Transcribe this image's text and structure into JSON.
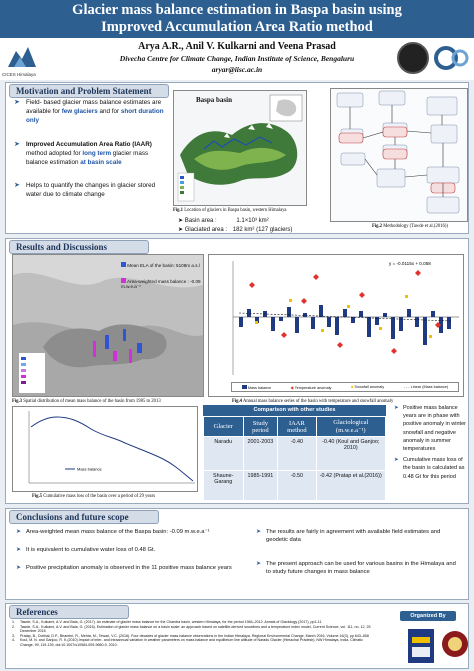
{
  "title": {
    "line1": "Glacier mass balance estimation in Baspa basin using",
    "line2": "Improved Accumulation Area Ratio method"
  },
  "authors": "Arya A.R., Anil V. Kulkarni and Veena Prasad",
  "affiliation": "Divecha Centre for Climate Change, Indian Institute of Science, Bengaluru",
  "email": "aryar@iisc.ac.in",
  "logo_left_caption": "CICES Himalaya",
  "motivation": {
    "heading": "Motivation and Problem Statement",
    "bullets": [
      {
        "pre": "Field- based glacier mass balance estimates are available for ",
        "hl1": "few glaciers",
        "mid": " and for ",
        "hl2": "short duration only",
        "post": ""
      },
      {
        "pre": "Improved Accumulation Area Ratio (IAAR)",
        "mid": " method adopted for ",
        "hl1": "long term",
        "post": " glacier mass balance estimation ",
        "hl2": "at basin scale"
      },
      {
        "text": "Helps to quantify the changes in glacier stored water due to climate change"
      }
    ]
  },
  "fig1": {
    "map_title": "Baspa basin",
    "caption_num": "Fig.1",
    "caption": " Location of glaciers in Baspa basin, western Himalaya",
    "basin_area_label": "Basin area :",
    "basin_area_value": "1.1×10³ km²",
    "glaciated_area_label": "Glaciated area :",
    "glaciated_area_value": "182 km² (127 glaciers)"
  },
  "fig2": {
    "caption_num": "Fig.2",
    "caption": " Methodology (Tawde et al.(2016))",
    "boxes": [
      "Equilibrium line altitude (ELA)",
      "Accumulation Area Ratio (AAR)",
      "Glacier mass balance",
      "Snow line altitude",
      "Hypsometry",
      "Temperature and precipitation data",
      "Mass balance",
      "Glacier area",
      "Snow cover"
    ]
  },
  "results": {
    "heading": "Results and Discussions",
    "fig3_legend1": "Mean ELA of the basin: 5108m a.s.l",
    "fig3_legend2": "Area-weighted mass balance : -0.09 m.w.e.a⁻¹",
    "fig3_caption_num": "Fig.3",
    "fig3_caption": " Spatial distribution of mean mass balance of the basin from 1985 to 2013",
    "fig4_caption_num": "Fig.4",
    "fig4_caption": " Annual mass balance series of the basin with temperature and snowfall anomaly",
    "fig4_equation": "y = -0.0115x + 0.058",
    "fig4_legend": [
      "Mass balance",
      "Temperature anomaly",
      "Snowfall anomaly",
      "Linear (Mass balance)"
    ],
    "fig5_caption_num": "Fig.5",
    "fig5_caption": " Cumulative mass loss of the basin over a period of 29 years",
    "fig5_legend": "Mass balance"
  },
  "table": {
    "title": "Comparison with other studies",
    "headers": [
      "Glacier",
      "Study period",
      "IAAR method",
      "Glaciological (m.w.e.a⁻¹)"
    ],
    "rows": [
      [
        "Naradu",
        "2001-2003",
        "-0.40",
        "-0.40 (Koul and Ganjoo; 2010)"
      ],
      [
        "Shaune-Garang",
        "1985-1991",
        "-0.50",
        "-0.42 (Pratap et al.(2016))"
      ]
    ]
  },
  "right_bullets": [
    "Positive mass balance years are in phase with positive anomaly in winter snowfall and negative anomaly in summer temperatures",
    "Cumulative mass loss of the basin is calculated as 0.48 Gt for this period"
  ],
  "conclusions": {
    "heading": "Conclusions and future scope",
    "left": [
      "Area-weighted mean mass balance of the Baspa basin: -0.09 m.w.e.a⁻¹",
      "It is equivalent to cumulative water loss of 0.48 Gt.",
      "Positive precipitation anomaly is observed in the 11 positive mass balance years"
    ],
    "right": [
      "The results are fairly in agreement with available field estimates and geodetic data",
      "The present approach can be used for various basins in the Himalaya and to study future changes in mass balance"
    ]
  },
  "references": {
    "heading": "References",
    "items": [
      "Tawde, S.A., Kulkarni, A.V. and Bala, G. (2017). An estimate of glacier mass balance for the Chandra basin, western Himalaya, for the period 1984–2012. Annals of Glaciology (2017), pp1-11",
      "Tawde, S.A., Kulkarni, A.V. and Bala, G. (2016). Estimation of glacier mass balance on a basin scale: an approach based on satellite-derived snowlines and a temperature index model, Current Science, vol. 111, no. 12, 25 December 2016",
      "Pratap, B., Dobhal, D.P., Bhambri, R., Mehta, M., Tewari, V.C. (2016). Four decades of glacier mass balance observations in the Indian Himalaya. Regional Environmental Change, March 2016, Volume 16(3), pp 643–658",
      "Koul, M. N. and Ganjoo, R. K.(2010).Impact of inter- and intraannual variation in weather parameters on mass balance and equilibrium line altitude of Naradu Glacier (Himachal Pradesh), NW Himalaya, India. Climatic Change, 99, 119-139, doi:10.1007/s10584-009-9660-9, 2010."
    ]
  },
  "organized_by": "Organized By"
}
